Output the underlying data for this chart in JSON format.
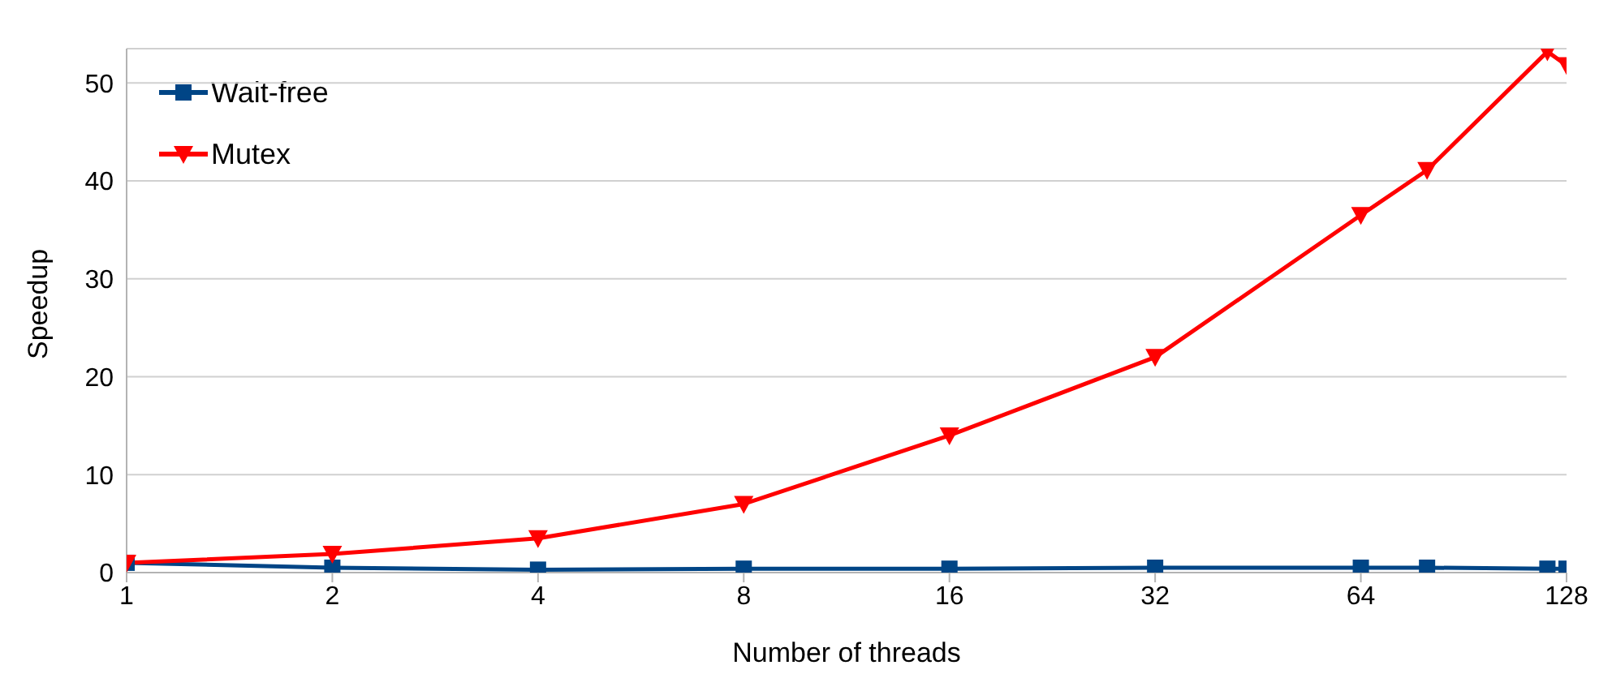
{
  "chart_data": {
    "type": "line",
    "xlabel": "Number of threads",
    "ylabel": "Speedup",
    "x": [
      1,
      2,
      4,
      8,
      16,
      32,
      64,
      80,
      120,
      128
    ],
    "log": "x",
    "xlim": [
      1,
      128
    ],
    "xticks": [
      1,
      2,
      4,
      8,
      16,
      32,
      64,
      128
    ],
    "ylim": [
      0,
      53.5
    ],
    "yticks": [
      0,
      10,
      20,
      30,
      40,
      50
    ],
    "grid": "y",
    "legend": "top left",
    "line_style": "solid",
    "series": [
      {
        "name": "Wait-free",
        "color": "#004586",
        "marker": "square",
        "values": [
          1,
          0.5,
          0.3,
          0.4,
          0.4,
          0.5,
          0.5,
          0.5,
          0.4,
          0.4
        ]
      },
      {
        "name": "Mutex",
        "color": "#ff0000",
        "marker": "triangle",
        "values": [
          1,
          1.9,
          3.5,
          7,
          14,
          22,
          36.5,
          41.1,
          53.2,
          51.8
        ]
      }
    ]
  }
}
